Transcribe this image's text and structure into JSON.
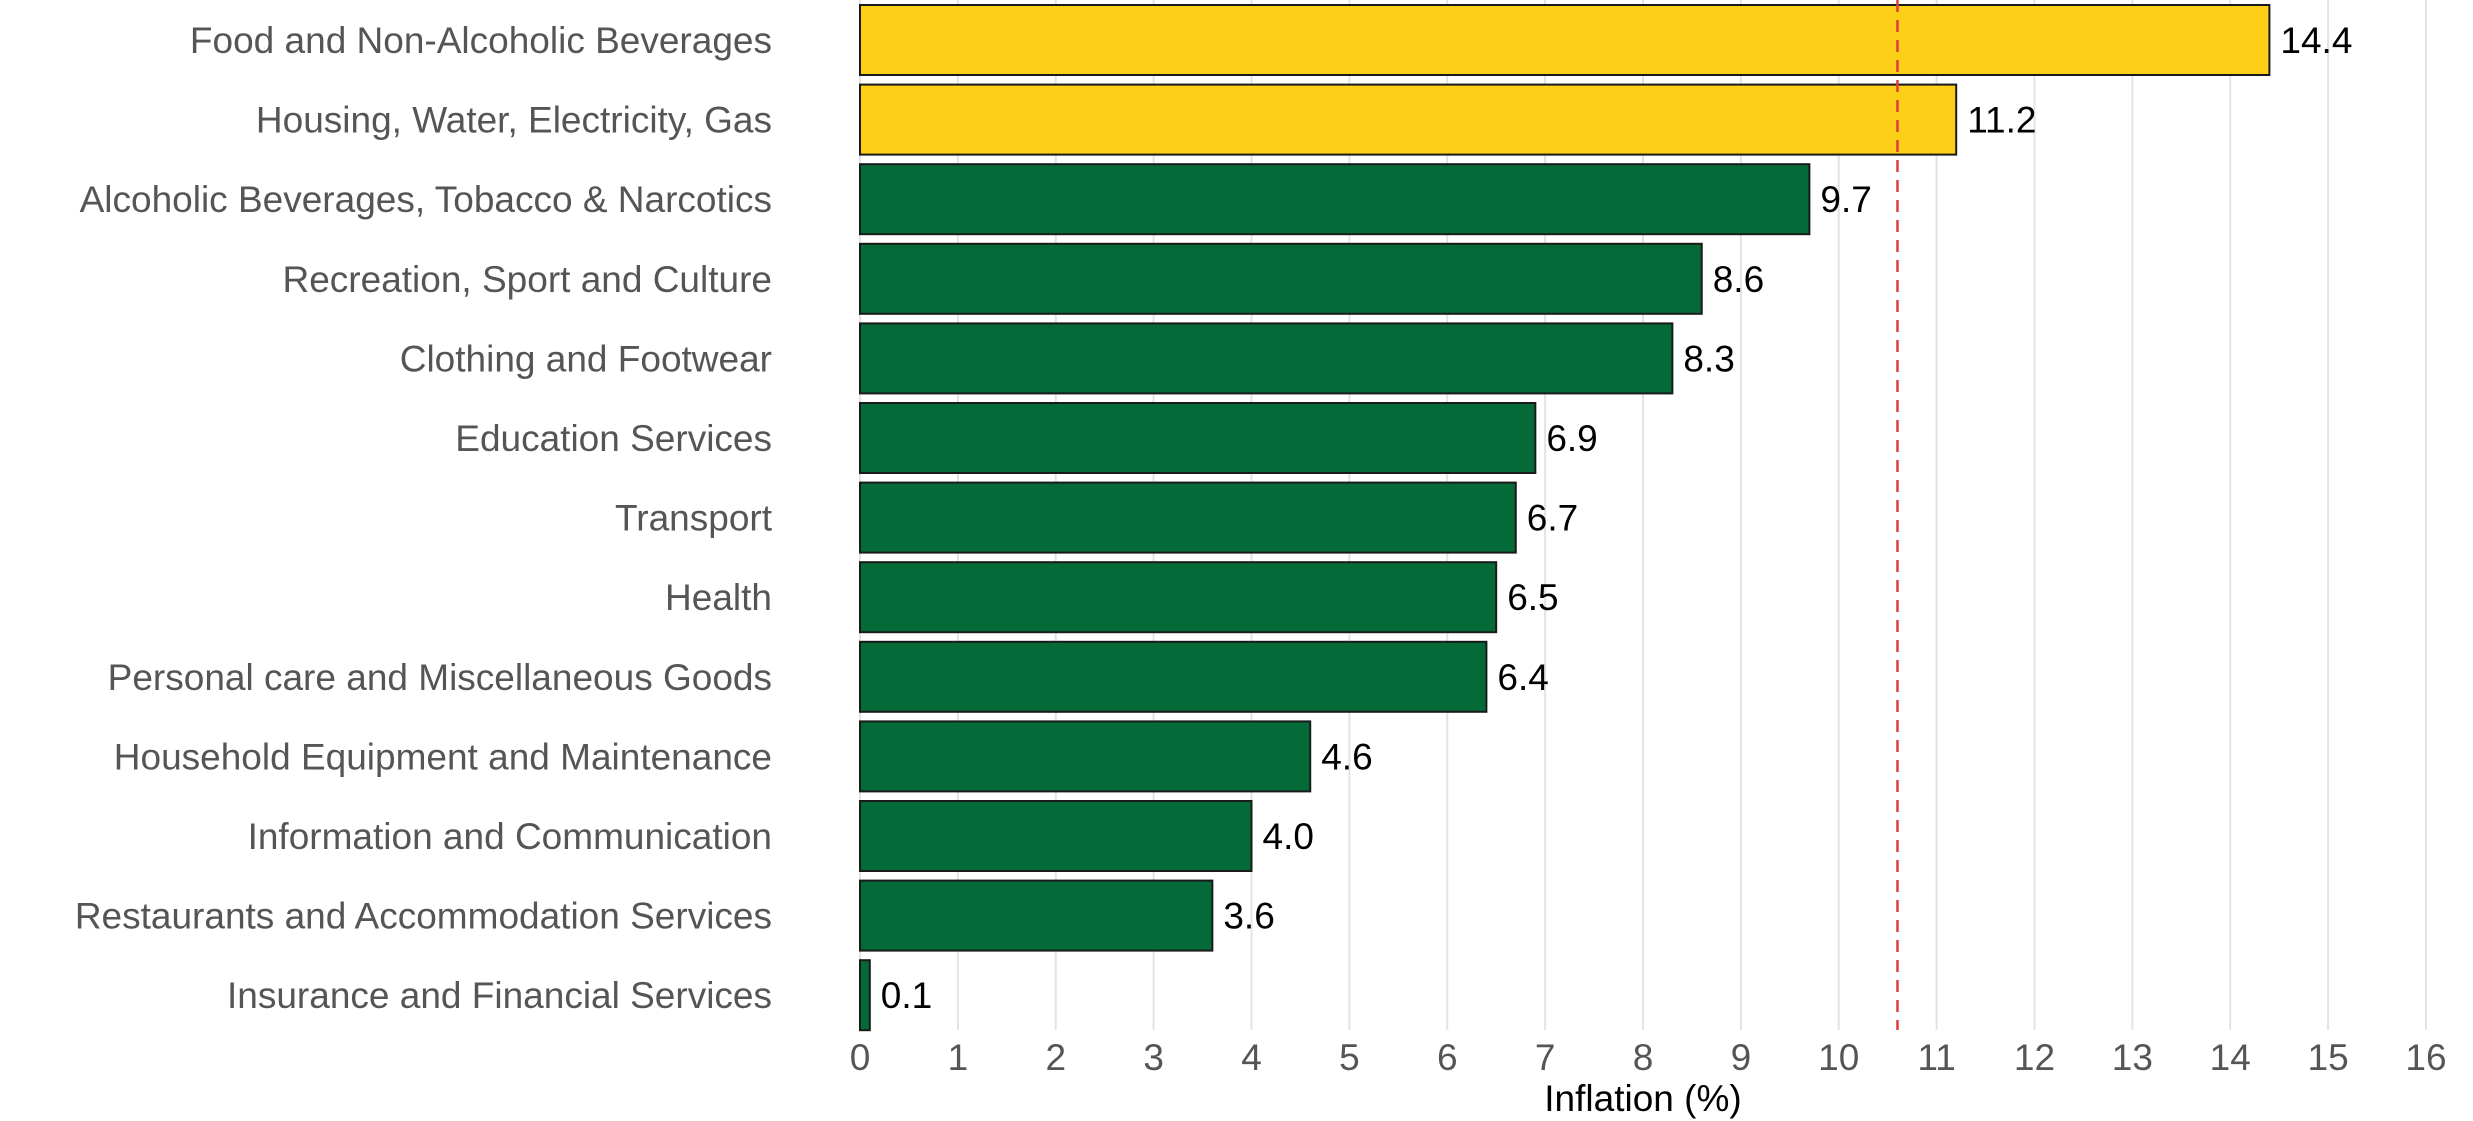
{
  "chart_data": {
    "type": "bar",
    "orientation": "horizontal",
    "categories": [
      "Food and Non-Alcoholic Beverages",
      "Housing, Water, Electricity, Gas",
      "Alcoholic Beverages, Tobacco & Narcotics",
      "Recreation, Sport and Culture",
      "Clothing and Footwear",
      "Education Services",
      "Transport",
      "Health",
      "Personal care and Miscellaneous Goods",
      "Household Equipment and  Maintenance",
      "Information and Communication",
      "Restaurants and Accommodation Services",
      "Insurance and Financial Services"
    ],
    "values": [
      14.4,
      11.2,
      9.7,
      8.6,
      8.3,
      6.9,
      6.7,
      6.5,
      6.4,
      4.6,
      4.0,
      3.6,
      0.1
    ],
    "value_labels": [
      "14.4",
      "11.2",
      "9.7",
      "8.6",
      "8.3",
      "6.9",
      "6.7",
      "6.5",
      "6.4",
      "4.6",
      "4.0",
      "3.6",
      "0.1"
    ],
    "highlighted": [
      true,
      true,
      false,
      false,
      false,
      false,
      false,
      false,
      false,
      false,
      false,
      false,
      false
    ],
    "colors": {
      "highlight": "#FDD017",
      "default": "#046A38",
      "reference_line": "#E03C3C"
    },
    "reference_line": 10.6,
    "xlabel": "Inflation (%)",
    "ylabel": "",
    "xlim": [
      0,
      16
    ],
    "xticks": [
      0,
      1,
      2,
      3,
      4,
      5,
      6,
      7,
      8,
      9,
      10,
      11,
      12,
      13,
      14,
      15,
      16
    ],
    "grid": "vertical",
    "legend": "none"
  }
}
